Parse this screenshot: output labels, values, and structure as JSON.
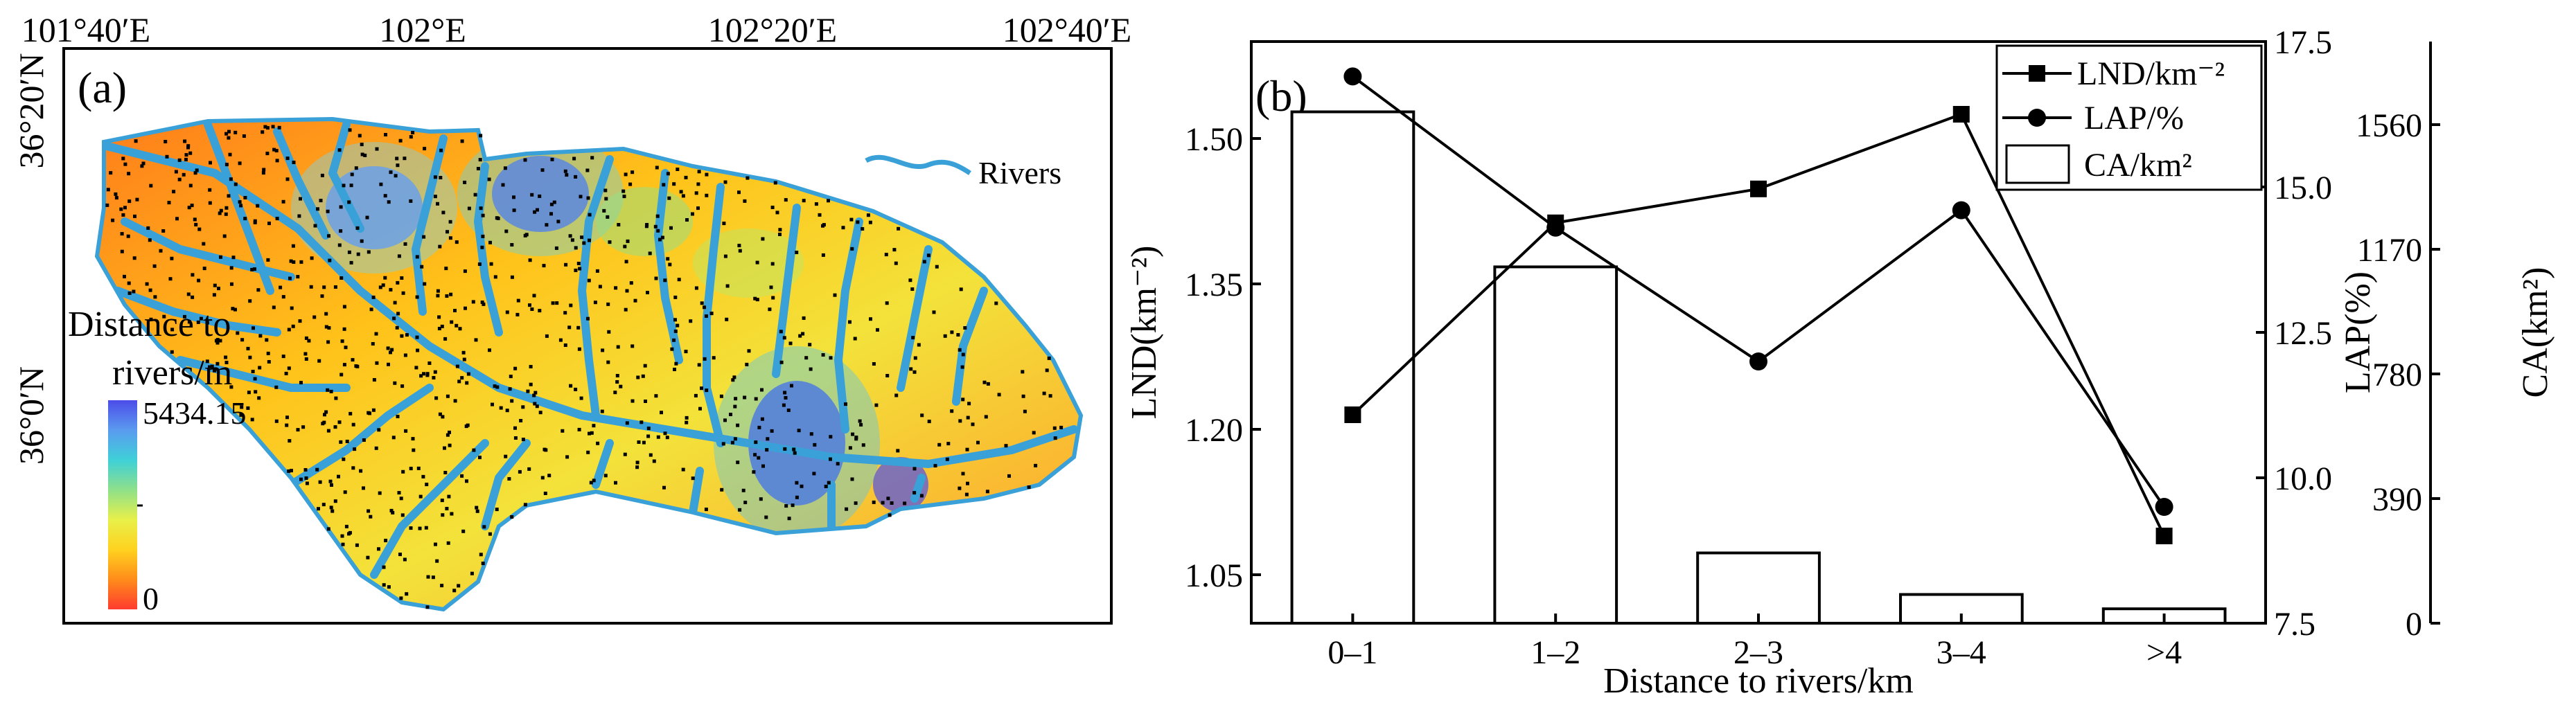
{
  "panel_a": {
    "label": "(a)",
    "lon_ticks": [
      "101°40′E",
      "102°E",
      "102°20′E",
      "102°40′E"
    ],
    "lat_ticks": [
      "36°20′N",
      "36°0′N"
    ],
    "rivers_legend": "Rivers",
    "colorbar": {
      "title_line1": "Distance to",
      "title_line2": "rivers/m",
      "max_label": "5434.15",
      "min_label": "0",
      "colors": [
        "#ff3b2f",
        "#ff8c1a",
        "#ffd21f",
        "#e8f04a",
        "#8fe08a",
        "#3fd0d8",
        "#5a9bf0",
        "#4c4ce8"
      ]
    },
    "river_color": "#3aa0d8"
  },
  "chart_data": {
    "type": "bar+line",
    "panel_label": "(b)",
    "categories": [
      "0–1",
      "1–2",
      "2–3",
      "3–4",
      ">4"
    ],
    "xlabel": "Distance to rivers/km",
    "bars": {
      "name": "CA/km²",
      "values": [
        1600,
        1115,
        220,
        90,
        45
      ],
      "axis": "CA",
      "fill": "#ffffff"
    },
    "series": [
      {
        "name": "LND/km⁻²",
        "marker": "square",
        "axis": "LND",
        "values": [
          1.215,
          1.413,
          1.448,
          1.525,
          1.09
        ]
      },
      {
        "name": "LAP/%",
        "marker": "circle",
        "axis": "LAP",
        "values": [
          16.9,
          14.3,
          12.0,
          14.6,
          9.5
        ]
      }
    ],
    "axes": {
      "LND": {
        "label": "LND(km⁻²)",
        "ylim": [
          1.0,
          1.6
        ],
        "ticks": [
          1.05,
          1.2,
          1.35,
          1.5
        ],
        "tick_labels": [
          "1.05",
          "1.20",
          "1.35",
          "1.50"
        ]
      },
      "LAP": {
        "label": "LAP(%)",
        "ylim": [
          7.5,
          17.5
        ],
        "ticks": [
          7.5,
          10.0,
          12.5,
          15.0,
          17.5
        ],
        "tick_labels": [
          "7.5",
          "10.0",
          "12.5",
          "15.0",
          "17.5"
        ]
      },
      "CA": {
        "label": "CA(km²)",
        "ylim": [
          0,
          1820
        ],
        "ticks": [
          0,
          390,
          780,
          1170,
          1560
        ],
        "tick_labels": [
          "0",
          "390",
          "780",
          "1170",
          "1560"
        ]
      }
    },
    "legend_position": "top-right",
    "grid": false
  }
}
